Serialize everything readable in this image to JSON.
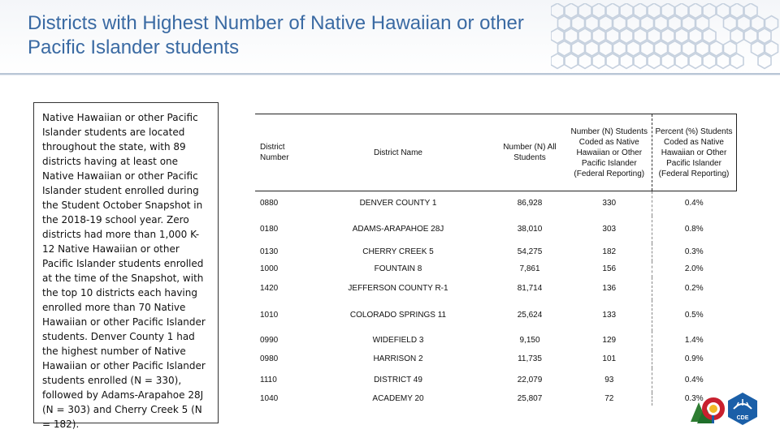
{
  "slide": {
    "title": "Districts with Highest Number of Native Hawaiian or other Pacific Islander students",
    "body_text": "Native Hawaiian or other Pacific Islander students are located throughout the state, with 89 districts having at least one Native Hawaiian or other Pacific Islander student enrolled during the Student October Snapshot in the 2018-19 school year. Zero districts had more than 1,000 K-12 Native Hawaiian or other Pacific Islander students enrolled at the time of the Snapshot, with the top 10 districts each having enrolled more than 70 Native Hawaiian or other Pacific Islander students. Denver County 1 had the highest number of Native Hawaiian or other Pacific Islander students enrolled (N = 330), followed by Adams-Arapahoe 28J (N = 303) and Cherry Creek 5 (N = 182)."
  },
  "table": {
    "headers": {
      "district_number": "District Number",
      "district_name": "District Name",
      "all_students": "Number (N) All Students",
      "n_coded": "Number (N) Students Coded as Native Hawaiian or Other Pacific Islander (Federal Reporting)",
      "pct_coded": "Percent (%) Students Coded as Native Hawaiian or Other Pacific Islander (Federal Reporting)"
    },
    "rows": [
      {
        "number": "0880",
        "name": "DENVER COUNTY 1",
        "all": "86,928",
        "n": "330",
        "pct": "0.4%"
      },
      {
        "number": "0180",
        "name": "ADAMS-ARAPAHOE 28J",
        "all": "38,010",
        "n": "303",
        "pct": "0.8%"
      },
      {
        "number": "0130",
        "name": "CHERRY CREEK 5",
        "all": "54,275",
        "n": "182",
        "pct": "0.3%"
      },
      {
        "number": "1000",
        "name": "FOUNTAIN 8",
        "all": "7,861",
        "n": "156",
        "pct": "2.0%"
      },
      {
        "number": "1420",
        "name": "JEFFERSON COUNTY R-1",
        "all": "81,714",
        "n": "136",
        "pct": "0.2%"
      },
      {
        "number": "1010",
        "name": "COLORADO SPRINGS 11",
        "all": "25,624",
        "n": "133",
        "pct": "0.5%"
      },
      {
        "number": "0990",
        "name": "WIDEFIELD 3",
        "all": "9,150",
        "n": "129",
        "pct": "1.4%"
      },
      {
        "number": "0980",
        "name": "HARRISON 2",
        "all": "11,735",
        "n": "101",
        "pct": "0.9%"
      },
      {
        "number": "1110",
        "name": "DISTRICT 49",
        "all": "22,079",
        "n": "93",
        "pct": "0.4%"
      },
      {
        "number": "1040",
        "name": "ACADEMY 20",
        "all": "25,807",
        "n": "72",
        "pct": "0.3%"
      }
    ]
  },
  "logos": {
    "cde_text": "CDE"
  },
  "colors": {
    "title": "#3a6aa3",
    "logo_blue": "#1b5fa8",
    "logo_red": "#c8202e",
    "logo_gold": "#f2b824",
    "logo_green": "#2e7d32"
  }
}
